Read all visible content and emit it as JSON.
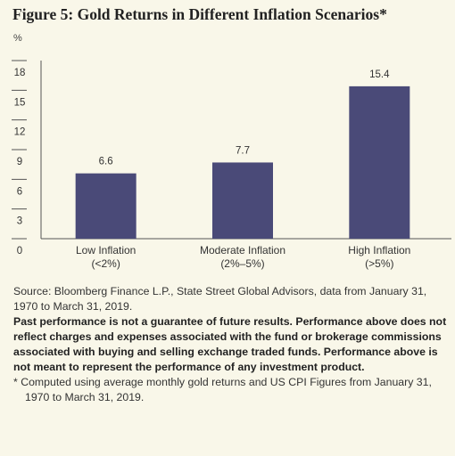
{
  "figure_title": "Figure 5: Gold Returns in Different Inflation Scenarios*",
  "chart_data": {
    "type": "bar",
    "title": "Figure 5: Gold Returns in Different Inflation Scenarios*",
    "ylabel": "%",
    "xlabel": "",
    "categories": [
      "Low Inflation\n(<2%)",
      "Moderate Inflation\n(2%–5%)",
      "High Inflation\n(>5%)"
    ],
    "values": [
      6.6,
      7.7,
      15.4
    ],
    "value_labels": [
      "6.6",
      "7.7",
      "15.4"
    ],
    "ylim": [
      0,
      18
    ],
    "yticks": [
      0,
      3,
      6,
      9,
      12,
      15,
      18
    ],
    "grid": false,
    "bar_color": "#4a4a78"
  },
  "notes": {
    "source": "Source: Bloomberg Finance L.P., State Street Global Advisors, data from January 31, 1970 to March 31, 2019.",
    "disclaimer": "Past performance is not a guarantee of future results. Performance above does not reflect charges and expenses associated with the fund or brokerage commissions associated with buying and selling exchange traded funds. Performance above is not meant to represent the performance of any investment product.",
    "footnote": "* Computed using average monthly gold returns and US CPI Figures from January 31, 1970 to March 31, 2019."
  }
}
